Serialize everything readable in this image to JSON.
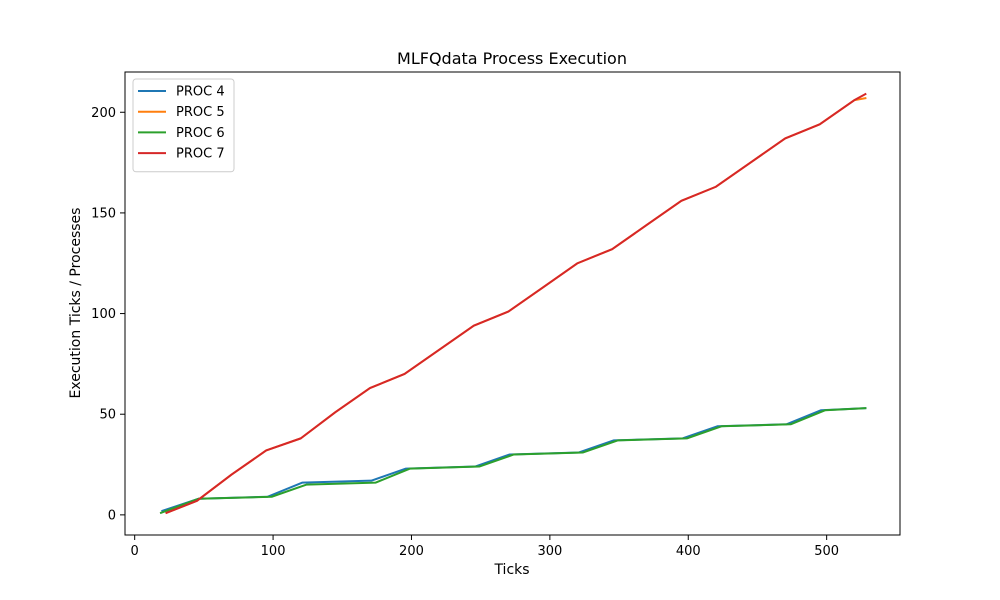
{
  "chart_data": {
    "type": "line",
    "title": "MLFQdata Process Execution",
    "xlabel": "Ticks",
    "ylabel": "Execution Ticks / Processes",
    "xlim": [
      -7,
      553
    ],
    "ylim": [
      -10,
      220
    ],
    "xticks": [
      0,
      100,
      200,
      300,
      400,
      500
    ],
    "yticks": [
      0,
      50,
      100,
      150,
      200
    ],
    "legend_position": "top-left",
    "grid": false,
    "series": [
      {
        "name": "PROC 4",
        "color": "#1f77b4",
        "points": [
          [
            20,
            2
          ],
          [
            46,
            8
          ],
          [
            96,
            9
          ],
          [
            121,
            16
          ],
          [
            171,
            17
          ],
          [
            196,
            23
          ],
          [
            246,
            24
          ],
          [
            271,
            30
          ],
          [
            321,
            31
          ],
          [
            346,
            37
          ],
          [
            396,
            38
          ],
          [
            421,
            44
          ],
          [
            471,
            45
          ],
          [
            496,
            52
          ],
          [
            528,
            53
          ]
        ]
      },
      {
        "name": "PROC 5",
        "color": "#ff7f0e",
        "points": [
          [
            23,
            1
          ],
          [
            45,
            7
          ],
          [
            70,
            20
          ],
          [
            95,
            32
          ],
          [
            120,
            38
          ],
          [
            145,
            51
          ],
          [
            170,
            63
          ],
          [
            195,
            70
          ],
          [
            220,
            82
          ],
          [
            245,
            94
          ],
          [
            270,
            101
          ],
          [
            295,
            113
          ],
          [
            320,
            125
          ],
          [
            345,
            132
          ],
          [
            370,
            144
          ],
          [
            395,
            156
          ],
          [
            420,
            163
          ],
          [
            445,
            175
          ],
          [
            470,
            187
          ],
          [
            495,
            194
          ],
          [
            520,
            206
          ],
          [
            528,
            207
          ]
        ]
      },
      {
        "name": "PROC 6",
        "color": "#2ca02c",
        "points": [
          [
            19,
            1
          ],
          [
            46,
            8
          ],
          [
            99,
            9
          ],
          [
            124,
            15
          ],
          [
            174,
            16
          ],
          [
            199,
            23
          ],
          [
            249,
            24
          ],
          [
            274,
            30
          ],
          [
            324,
            31
          ],
          [
            349,
            37
          ],
          [
            399,
            38
          ],
          [
            424,
            44
          ],
          [
            474,
            45
          ],
          [
            499,
            52
          ],
          [
            528,
            53
          ]
        ]
      },
      {
        "name": "PROC 7",
        "color": "#d62728",
        "points": [
          [
            23,
            1
          ],
          [
            45,
            7
          ],
          [
            70,
            20
          ],
          [
            95,
            32
          ],
          [
            120,
            38
          ],
          [
            145,
            51
          ],
          [
            170,
            63
          ],
          [
            195,
            70
          ],
          [
            220,
            82
          ],
          [
            245,
            94
          ],
          [
            270,
            101
          ],
          [
            295,
            113
          ],
          [
            320,
            125
          ],
          [
            345,
            132
          ],
          [
            370,
            144
          ],
          [
            395,
            156
          ],
          [
            420,
            163
          ],
          [
            445,
            175
          ],
          [
            470,
            187
          ],
          [
            495,
            194
          ],
          [
            520,
            206
          ],
          [
            528,
            209
          ]
        ]
      }
    ]
  }
}
